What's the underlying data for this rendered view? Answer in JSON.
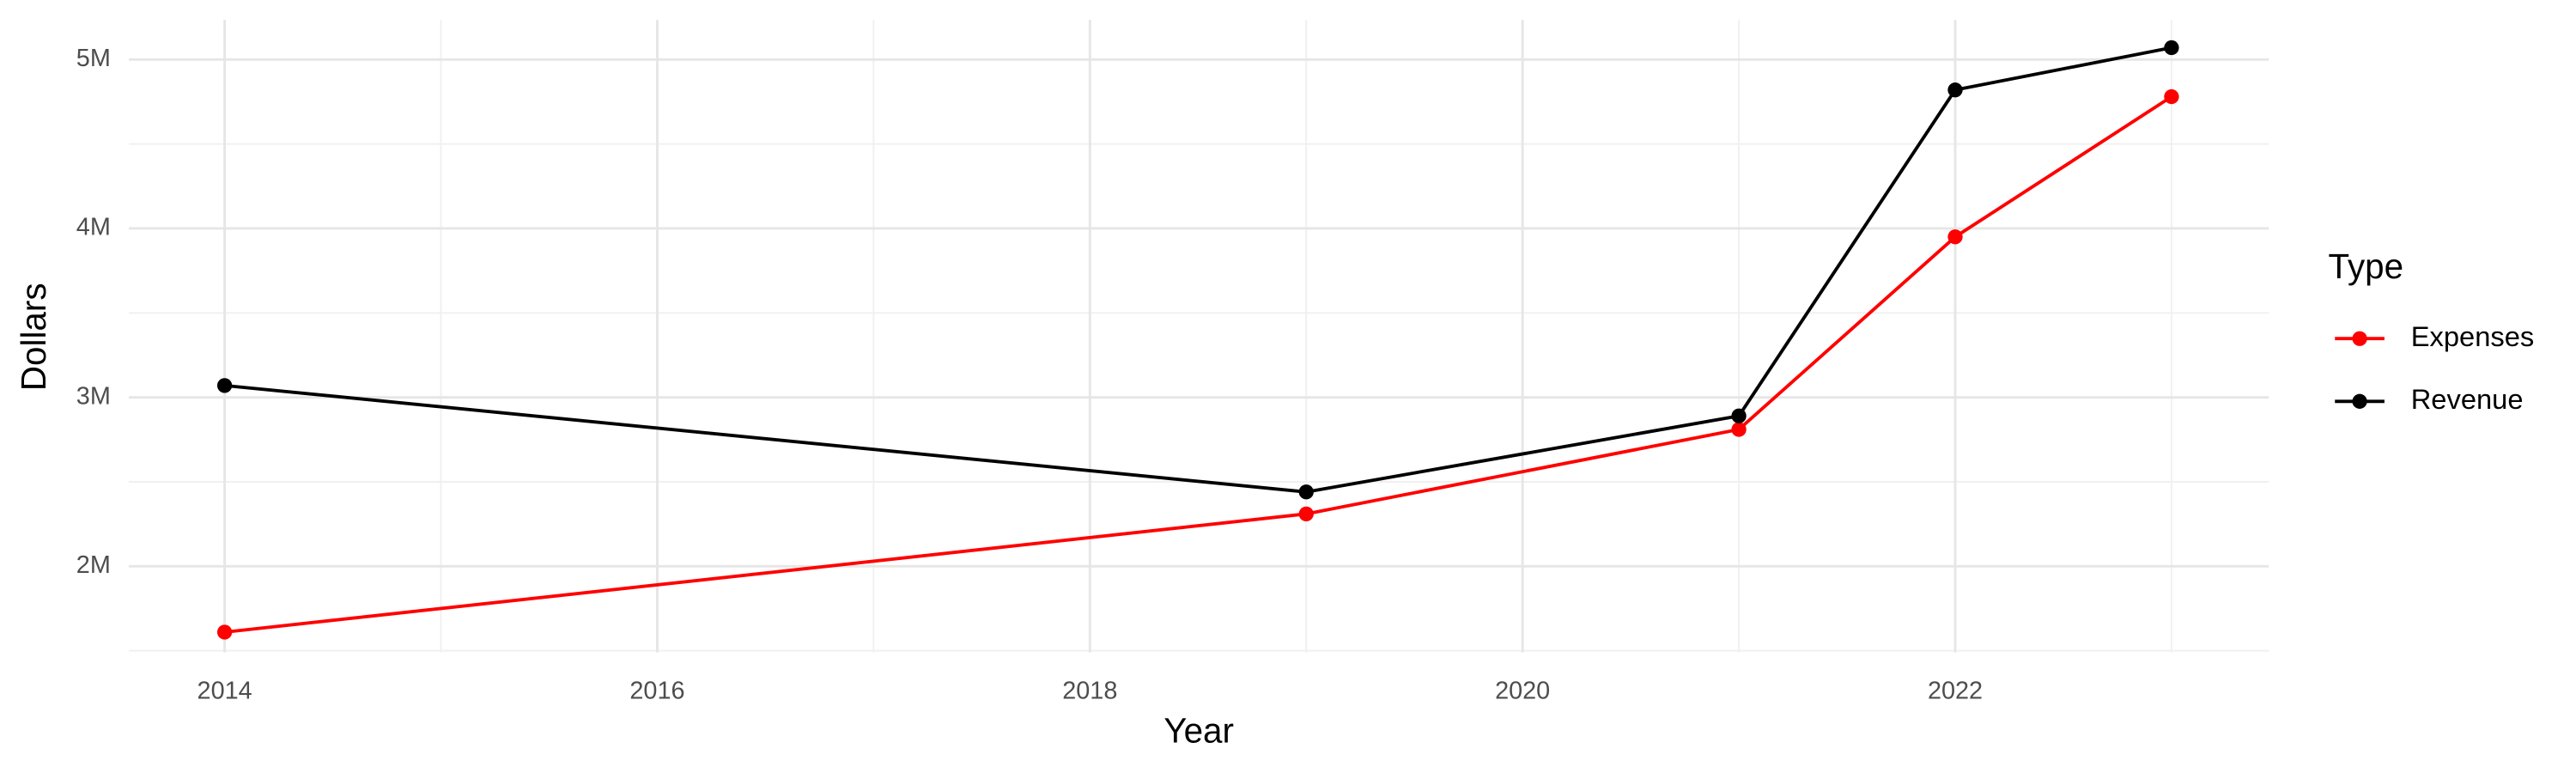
{
  "chart_data": {
    "type": "line",
    "x_label": "Year",
    "y_label": "Dollars",
    "legend_title": "Type",
    "legend_position": "right",
    "x": [
      2014,
      2019,
      2021,
      2022,
      2023
    ],
    "series": [
      {
        "name": "Expenses",
        "color": "#ff0000",
        "values": [
          1610000,
          2310000,
          2810000,
          3950000,
          4780000
        ]
      },
      {
        "name": "Revenue",
        "color": "#000000",
        "values": [
          3070000,
          2440000,
          2890000,
          4820000,
          5070000
        ]
      }
    ],
    "xlim": [
      2013.557,
      2023.45
    ],
    "xticks": [
      2014,
      2016,
      2018,
      2020,
      2022
    ],
    "xminorticks": [
      2015,
      2017,
      2019,
      2021,
      2023
    ],
    "ylim": [
      1490000,
      5235000
    ],
    "yticks": [
      {
        "value": 2000000,
        "label": "2M"
      },
      {
        "value": 3000000,
        "label": "3M"
      },
      {
        "value": 4000000,
        "label": "4M"
      },
      {
        "value": 5000000,
        "label": "5M"
      }
    ],
    "yminorticks": [
      1500000,
      2500000,
      3500000,
      4500000
    ],
    "grid": true
  }
}
